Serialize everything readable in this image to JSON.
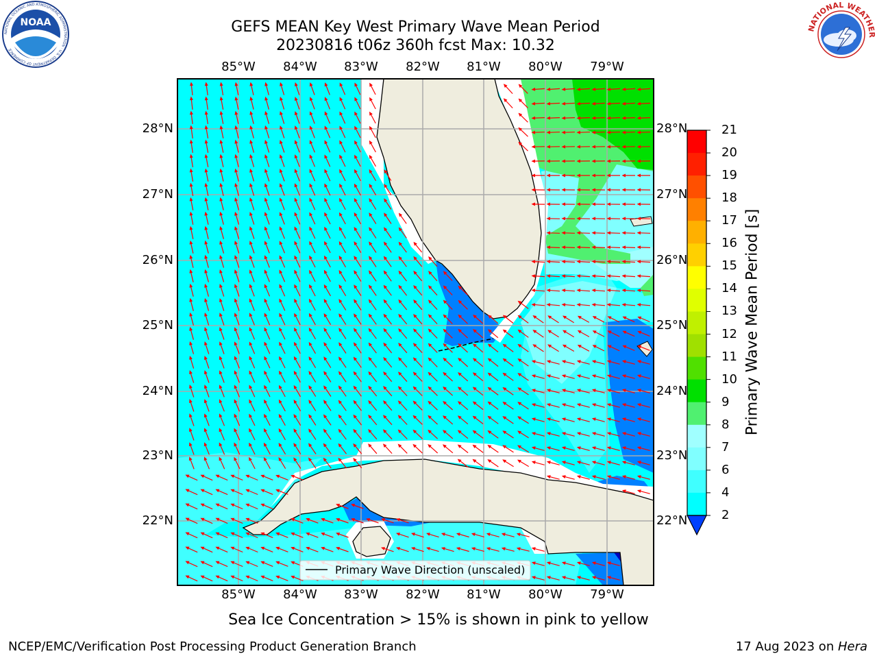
{
  "header": {
    "title_line1": "GEFS MEAN Key West Primary Wave Mean Period",
    "title_line2": "20230816 t06z 360h fcst   Max: 10.32"
  },
  "logos": {
    "noaa_text": "NOAA",
    "noaa_ring": "NATIONAL OCEANIC AND ATMOSPHERIC ADMINISTRATION · U.S. DEPARTMENT OF COMMERCE",
    "nws_ring": "NATIONAL WEATHER SERVICE"
  },
  "map": {
    "lon_labels": [
      "85°W",
      "84°W",
      "83°W",
      "82°W",
      "81°W",
      "80°W",
      "79°W"
    ],
    "lat_labels": [
      "28°N",
      "27°N",
      "26°N",
      "25°N",
      "24°N",
      "23°N",
      "22°N"
    ],
    "legend_label": "Primary Wave Direction (unscaled)",
    "arrow_color": "#ff0000",
    "land_color": "#efedde"
  },
  "colorbar": {
    "title": "Primary Wave Mean Period [s]",
    "ticks": [
      "2",
      "4",
      "6",
      "7",
      "8",
      "9",
      "10",
      "11",
      "12",
      "13",
      "14",
      "15",
      "16",
      "17",
      "18",
      "19",
      "20",
      "21"
    ],
    "colors": [
      "#0040ff",
      "#0080ff",
      "#00ffff",
      "#40ffff",
      "#80ffff",
      "#a0ffff",
      "#50f070",
      "#00e000",
      "#50e000",
      "#a0e000",
      "#c0f000",
      "#e0ff00",
      "#ffff00",
      "#ffd000",
      "#ffb000",
      "#ff8000",
      "#ff5000",
      "#ff2000",
      "#ff0000"
    ]
  },
  "caption": "Sea Ice Concentration > 15% is shown in pink to yellow",
  "footer": {
    "left": "NCEP/EMC/Verification Post Processing Product Generation Branch",
    "right_date": "17 Aug 2023 on ",
    "right_host": "Hera"
  }
}
